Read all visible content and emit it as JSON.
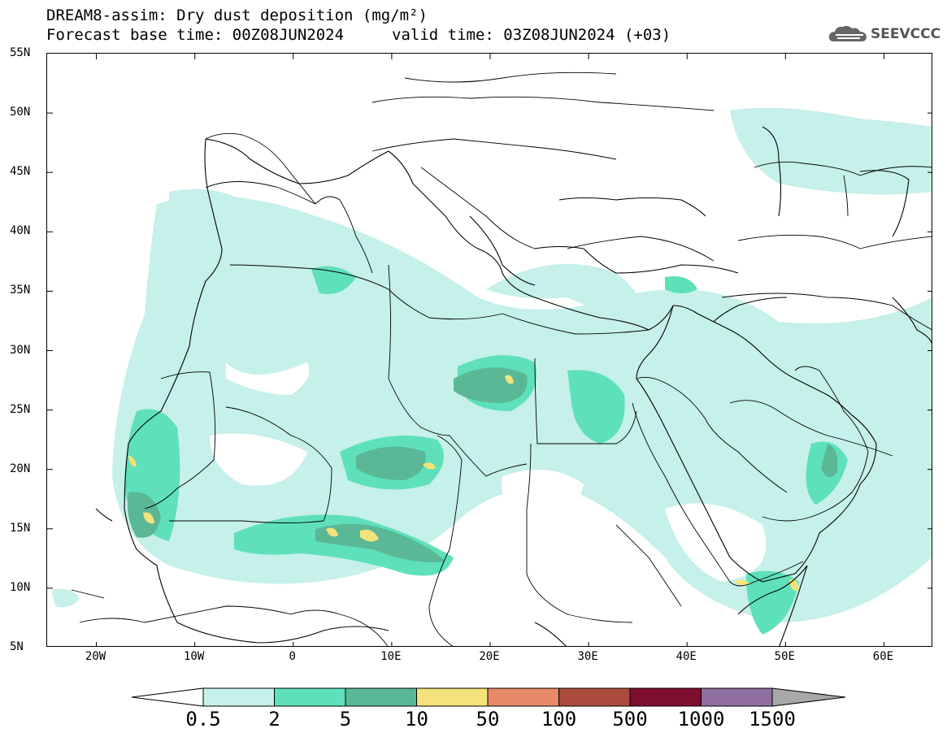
{
  "header": {
    "title": "DREAM8-assim: Dry dust deposition (mg/m²)",
    "forecast_base": "Forecast base time: 00Z08JUN2024",
    "valid_time": "valid time: 03Z08JUN2024 (+03)"
  },
  "logo": {
    "text": "SEEVCCC",
    "icon": "cloud-icon"
  },
  "map": {
    "lat_labels": [
      "55N",
      "50N",
      "45N",
      "40N",
      "35N",
      "30N",
      "25N",
      "20N",
      "15N",
      "10N",
      "5N"
    ],
    "lon_labels": [
      "20W",
      "10W",
      "0",
      "10E",
      "20E",
      "30E",
      "40E",
      "50E",
      "60E"
    ],
    "lat_range": [
      5,
      55
    ],
    "lon_range": [
      -25,
      65
    ]
  },
  "legend": {
    "levels": [
      "0.5",
      "2",
      "5",
      "10",
      "50",
      "100",
      "500",
      "1000",
      "1500"
    ],
    "colors": [
      "#c6f0ea",
      "#5ee0bb",
      "#5bb896",
      "#f4e27a",
      "#e88a68",
      "#ab4b3d",
      "#7d0e2e",
      "#8f6fa0",
      "#a8a8a8"
    ]
  }
}
